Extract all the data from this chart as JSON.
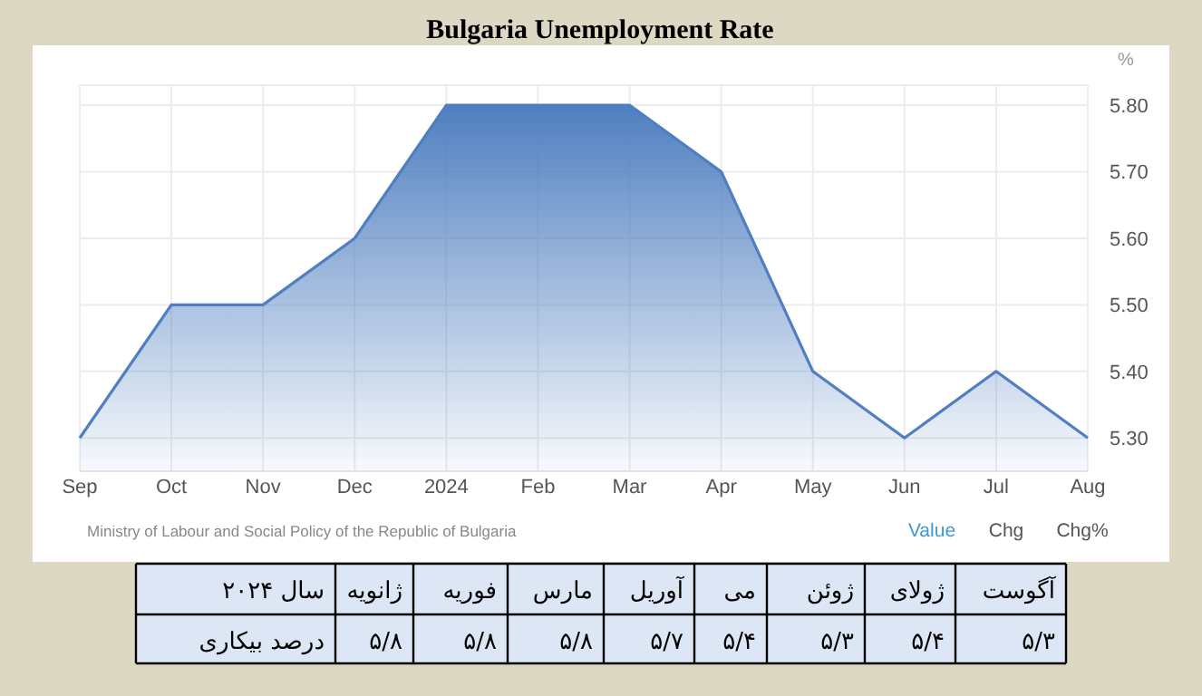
{
  "chart_data": {
    "type": "area",
    "title": "Bulgaria Unemployment Rate",
    "ylabel": "%",
    "categories": [
      "Sep",
      "Oct",
      "Nov",
      "Dec",
      "2024",
      "Feb",
      "Mar",
      "Apr",
      "May",
      "Jun",
      "Jul",
      "Aug"
    ],
    "series": [
      {
        "color": "#4f7fc0",
        "values": [
          5.3,
          5.5,
          5.5,
          5.6,
          5.8,
          5.8,
          5.8,
          5.7,
          5.4,
          5.3,
          5.4,
          5.3
        ]
      }
    ],
    "ylim": [
      5.25,
      5.83
    ],
    "yticks": [
      {
        "value": 5.3,
        "label": "5.30"
      },
      {
        "value": 5.4,
        "label": "5.40"
      },
      {
        "value": 5.5,
        "label": "5.50"
      },
      {
        "value": 5.6,
        "label": "5.60"
      },
      {
        "value": 5.7,
        "label": "5.70"
      },
      {
        "value": 5.8,
        "label": "5.80"
      }
    ],
    "grid": true,
    "annotations": [
      "Ministry of Labour and Social Policy of the Republic of Bulgaria",
      "Value",
      "Chg",
      "Chg%",
      "سال ۲۰۲۴",
      "درصد بیکاری",
      "ژانویه",
      "فوریه",
      "مارس",
      "آوریل",
      "می",
      "ژوئن",
      "ژولای",
      "آگوست",
      "۵/۸",
      "۵/۸",
      "۵/۸",
      "۵/۷",
      "۵/۴",
      "۵/۳",
      "۵/۴",
      "۵/۳"
    ]
  }
}
